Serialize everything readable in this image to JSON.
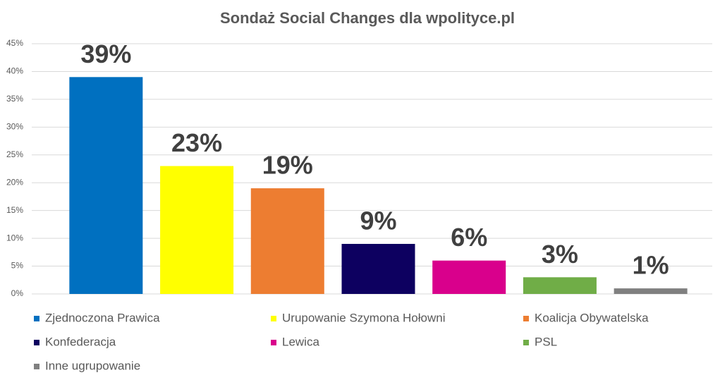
{
  "chart_data": {
    "type": "bar",
    "title": "Sondaż Social Changes dla wpolityce.pl",
    "categories": [
      "Zjednoczona Prawica",
      "Urupowanie Szymona Hołowni",
      "Koalicja Obywatelska",
      "Konfederacja",
      "Lewica",
      "PSL",
      "Inne ugrupowanie"
    ],
    "values": [
      39,
      23,
      19,
      9,
      6,
      3,
      1
    ],
    "value_labels": [
      "39%",
      "23%",
      "19%",
      "9%",
      "6%",
      "3%",
      "1%"
    ],
    "colors": [
      "#0070c0",
      "#ffff00",
      "#ed7d31",
      "#0d0060",
      "#d9008c",
      "#70ad47",
      "#808080"
    ],
    "ylim": [
      0,
      45
    ],
    "yticks": [
      {
        "value": 0,
        "label": "0%"
      },
      {
        "value": 5,
        "label": "5%"
      },
      {
        "value": 10,
        "label": "10%"
      },
      {
        "value": 15,
        "label": "15%"
      },
      {
        "value": 20,
        "label": "20%"
      },
      {
        "value": 25,
        "label": "25%"
      },
      {
        "value": 30,
        "label": "30%"
      },
      {
        "value": 35,
        "label": "35%"
      },
      {
        "value": 40,
        "label": "40%"
      },
      {
        "value": 45,
        "label": "45%"
      }
    ],
    "grid": true
  }
}
